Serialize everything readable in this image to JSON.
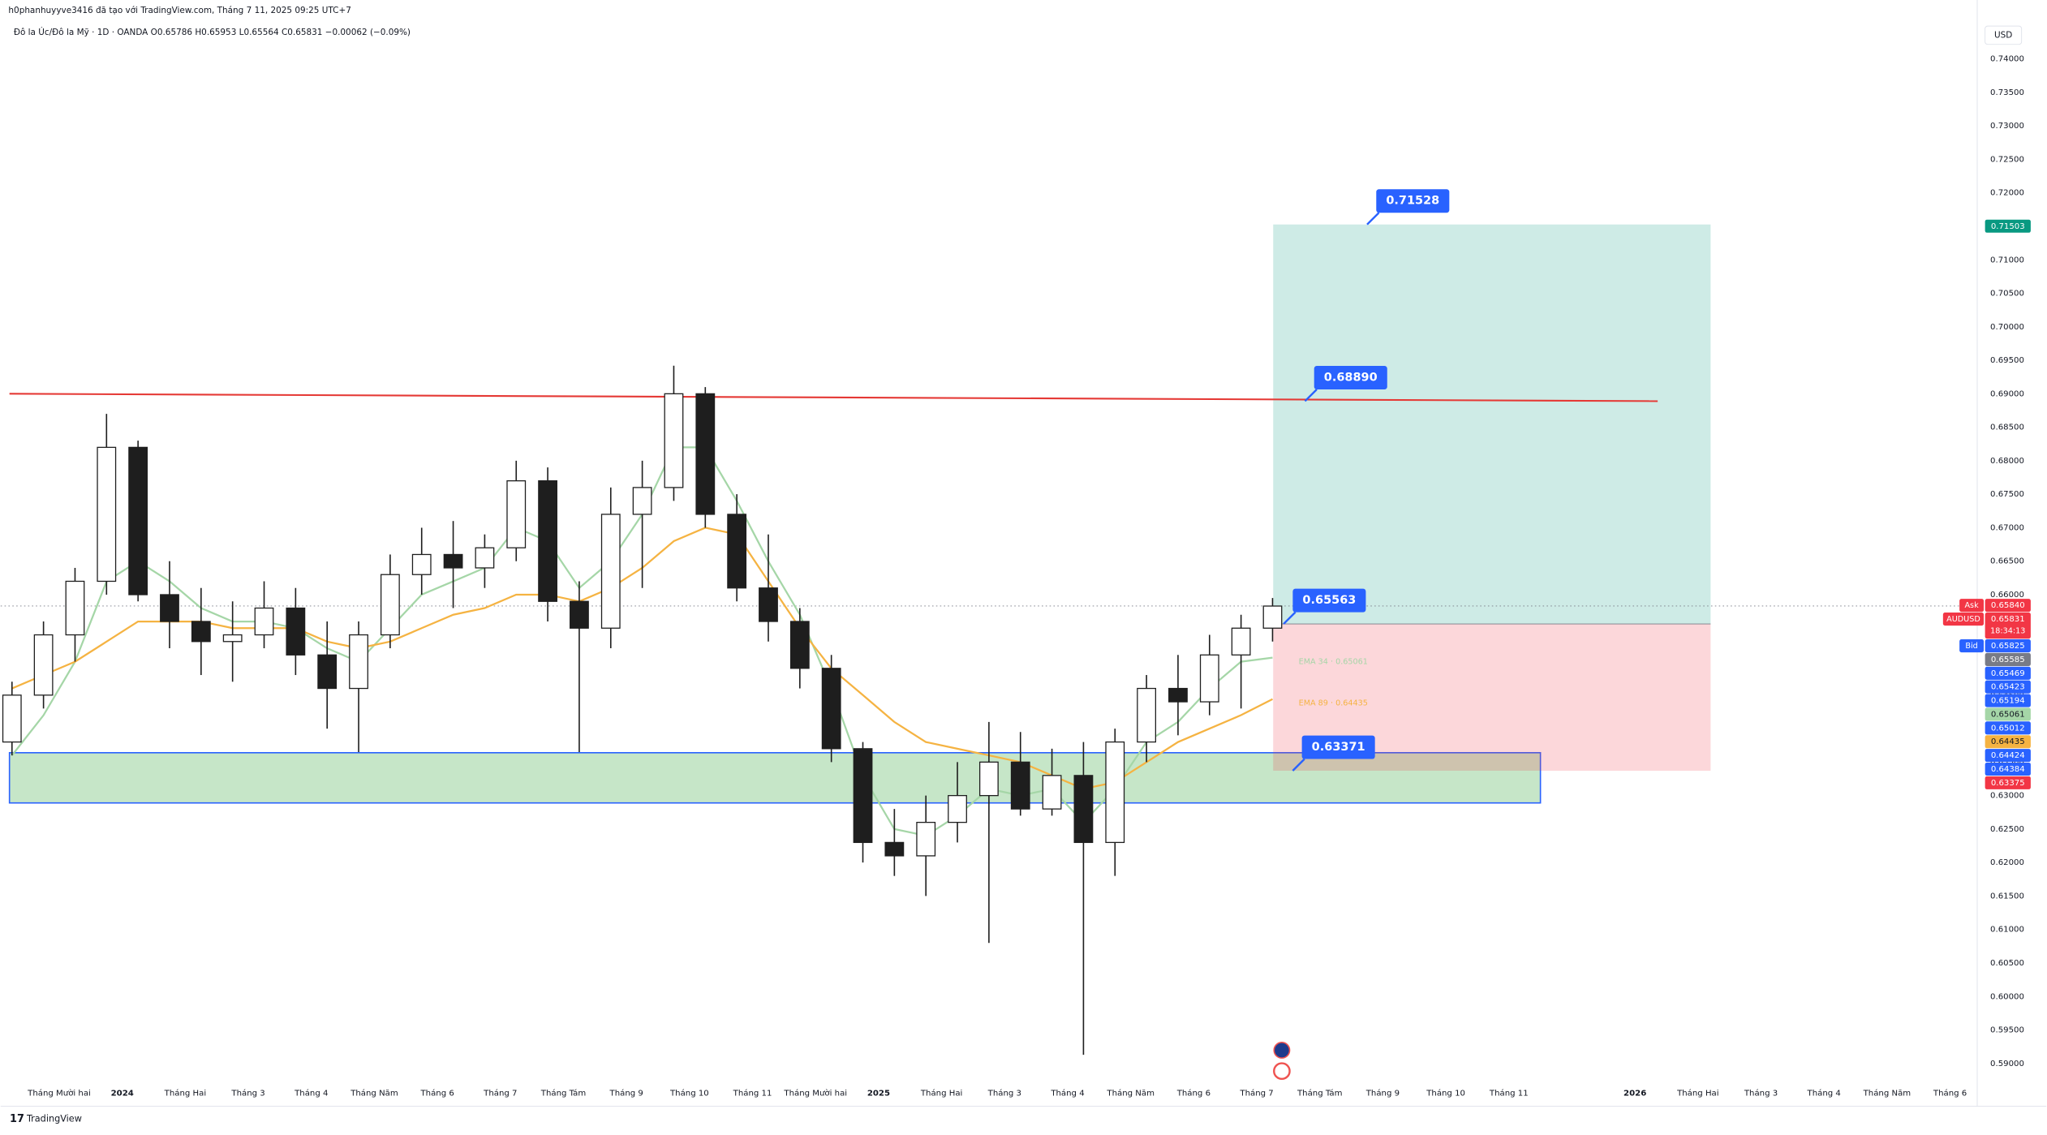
{
  "header": {
    "creator": "h0phanhuyyve3416 đã tạo với TradingView.com, Tháng 7 11, 2025 09:25 UTC+7",
    "symbol_line": "Đô la Úc/Đô la Mỹ · 1D · OANDA  O0.65786  H0.65953  L0.65564  C0.65831  −0.00062 (−0.09%)"
  },
  "chart_data": {
    "type": "candlestick",
    "currency": "USD",
    "up_color": "#ffffff",
    "down_color": "#1e1e1e",
    "wick_color": "#1e1e1e",
    "x": [
      -0.75,
      -0.25,
      0.25,
      0.75,
      1.25,
      1.75,
      2.25,
      2.75,
      3.25,
      3.75,
      4.25,
      4.75,
      5.25,
      5.75,
      6.25,
      6.75,
      7.25,
      7.75,
      8.25,
      8.75,
      9.25,
      9.75,
      10.25,
      10.75,
      11.25,
      11.75,
      12.25,
      12.75,
      13.25,
      13.75,
      14.25,
      14.75,
      15.25,
      15.75,
      16.25,
      16.75,
      17.25,
      17.75,
      18.25,
      18.75,
      19.25
    ],
    "open": [
      0.638,
      0.645,
      0.654,
      0.662,
      0.682,
      0.66,
      0.656,
      0.653,
      0.654,
      0.658,
      0.651,
      0.646,
      0.654,
      0.663,
      0.666,
      0.664,
      0.667,
      0.677,
      0.659,
      0.655,
      0.672,
      0.676,
      0.69,
      0.672,
      0.661,
      0.656,
      0.649,
      0.637,
      0.623,
      0.621,
      0.626,
      0.63,
      0.635,
      0.628,
      0.633,
      0.623,
      0.638,
      0.646,
      0.644,
      0.651,
      0.655
    ],
    "high": [
      0.647,
      0.656,
      0.664,
      0.687,
      0.683,
      0.665,
      0.661,
      0.659,
      0.662,
      0.661,
      0.656,
      0.656,
      0.666,
      0.67,
      0.671,
      0.669,
      0.68,
      0.679,
      0.662,
      0.676,
      0.68,
      0.6942,
      0.691,
      0.675,
      0.669,
      0.658,
      0.651,
      0.638,
      0.628,
      0.63,
      0.635,
      0.641,
      0.6395,
      0.637,
      0.638,
      0.64,
      0.648,
      0.651,
      0.654,
      0.657,
      0.6595
    ],
    "low": [
      0.636,
      0.643,
      0.65,
      0.66,
      0.659,
      0.652,
      0.648,
      0.647,
      0.652,
      0.648,
      0.64,
      0.6365,
      0.652,
      0.66,
      0.658,
      0.661,
      0.665,
      0.656,
      0.6365,
      0.652,
      0.661,
      0.674,
      0.67,
      0.659,
      0.653,
      0.646,
      0.635,
      0.62,
      0.618,
      0.615,
      0.623,
      0.608,
      0.627,
      0.627,
      0.5913,
      0.618,
      0.635,
      0.639,
      0.642,
      0.643,
      0.653
    ],
    "close": [
      0.645,
      0.654,
      0.662,
      0.682,
      0.66,
      0.656,
      0.653,
      0.654,
      0.658,
      0.651,
      0.646,
      0.654,
      0.663,
      0.666,
      0.664,
      0.667,
      0.677,
      0.659,
      0.655,
      0.672,
      0.676,
      0.69,
      0.672,
      0.661,
      0.656,
      0.649,
      0.637,
      0.623,
      0.621,
      0.626,
      0.63,
      0.635,
      0.628,
      0.633,
      0.623,
      0.638,
      0.646,
      0.644,
      0.651,
      0.655,
      0.6583
    ],
    "series": [
      {
        "name": "EMA 34",
        "label": "EMA 34 · 0.65061",
        "color": "#a5d6a7",
        "values": [
          0.636,
          0.642,
          0.65,
          0.662,
          0.665,
          0.662,
          0.658,
          0.656,
          0.656,
          0.655,
          0.652,
          0.65,
          0.655,
          0.66,
          0.662,
          0.664,
          0.67,
          0.668,
          0.661,
          0.665,
          0.672,
          0.682,
          0.682,
          0.674,
          0.665,
          0.657,
          0.646,
          0.633,
          0.625,
          0.624,
          0.627,
          0.631,
          0.63,
          0.631,
          0.626,
          0.631,
          0.638,
          0.641,
          0.646,
          0.65,
          0.6506
        ]
      },
      {
        "name": "EMA 89",
        "label": "EMA 89 · 0.64435",
        "color": "#f5b342",
        "values": [
          0.646,
          0.648,
          0.65,
          0.653,
          0.656,
          0.656,
          0.656,
          0.655,
          0.655,
          0.655,
          0.653,
          0.652,
          0.653,
          0.655,
          0.657,
          0.658,
          0.66,
          0.66,
          0.659,
          0.661,
          0.664,
          0.668,
          0.67,
          0.669,
          0.662,
          0.655,
          0.649,
          0.645,
          0.641,
          0.638,
          0.637,
          0.636,
          0.635,
          0.633,
          0.631,
          0.632,
          0.635,
          0.638,
          0.64,
          0.642,
          0.6444
        ]
      }
    ],
    "xlim": [
      -0.93,
      30.43
    ],
    "ylim": [
      0.5836,
      0.7488
    ],
    "xticks": [
      {
        "value": 0,
        "label": "Tháng Mười hai"
      },
      {
        "value": 1,
        "label": "2024"
      },
      {
        "value": 2,
        "label": "Tháng Hai"
      },
      {
        "value": 3,
        "label": "Tháng 3"
      },
      {
        "value": 4,
        "label": "Tháng 4"
      },
      {
        "value": 5,
        "label": "Tháng Năm"
      },
      {
        "value": 6,
        "label": "Tháng 6"
      },
      {
        "value": 7,
        "label": "Tháng 7"
      },
      {
        "value": 8,
        "label": "Tháng Tám"
      },
      {
        "value": 9,
        "label": "Tháng 9"
      },
      {
        "value": 10,
        "label": "Tháng 10"
      },
      {
        "value": 11,
        "label": "Tháng 11"
      },
      {
        "value": 12,
        "label": "Tháng Mười hai"
      },
      {
        "value": 13,
        "label": "2025"
      },
      {
        "value": 14,
        "label": "Tháng Hai"
      },
      {
        "value": 15,
        "label": "Tháng 3"
      },
      {
        "value": 16,
        "label": "Tháng 4"
      },
      {
        "value": 17,
        "label": "Tháng Năm"
      },
      {
        "value": 18,
        "label": "Tháng 6"
      },
      {
        "value": 19,
        "label": "Tháng 7"
      },
      {
        "value": 20,
        "label": "Tháng Tám"
      },
      {
        "value": 21,
        "label": "Tháng 9"
      },
      {
        "value": 22,
        "label": "Tháng 10"
      },
      {
        "value": 23,
        "label": "Tháng 11"
      },
      {
        "value": 25,
        "label": "2026"
      },
      {
        "value": 26,
        "label": "Tháng Hai"
      },
      {
        "value": 27,
        "label": "Tháng 3"
      },
      {
        "value": 28,
        "label": "Tháng 4"
      },
      {
        "value": 29,
        "label": "Tháng Năm"
      },
      {
        "value": 30,
        "label": "Tháng 6"
      }
    ],
    "yticks": [
      {
        "value": 0.74,
        "label": "0.74000"
      },
      {
        "value": 0.735,
        "label": "0.73500"
      },
      {
        "value": 0.73,
        "label": "0.73000"
      },
      {
        "value": 0.725,
        "label": "0.72500"
      },
      {
        "value": 0.72,
        "label": "0.72000"
      },
      {
        "value": 0.715,
        "label": "0.71500"
      },
      {
        "value": 0.71,
        "label": "0.71000"
      },
      {
        "value": 0.705,
        "label": "0.70500"
      },
      {
        "value": 0.7,
        "label": "0.70000"
      },
      {
        "value": 0.695,
        "label": "0.69500"
      },
      {
        "value": 0.69,
        "label": "0.69000"
      },
      {
        "value": 0.685,
        "label": "0.68500"
      },
      {
        "value": 0.68,
        "label": "0.68000"
      },
      {
        "value": 0.675,
        "label": "0.67500"
      },
      {
        "value": 0.67,
        "label": "0.67000"
      },
      {
        "value": 0.665,
        "label": "0.66500"
      },
      {
        "value": 0.66,
        "label": "0.66000"
      },
      {
        "value": 0.655,
        "label": "0.65500"
      },
      {
        "value": 0.65,
        "label": "0.65000"
      },
      {
        "value": 0.645,
        "label": "0.64500"
      },
      {
        "value": 0.64,
        "label": "0.64000"
      },
      {
        "value": 0.635,
        "label": "0.63500"
      },
      {
        "value": 0.63,
        "label": "0.63000"
      },
      {
        "value": 0.625,
        "label": "0.62500"
      },
      {
        "value": 0.62,
        "label": "0.62000"
      },
      {
        "value": 0.615,
        "label": "0.61500"
      },
      {
        "value": 0.61,
        "label": "0.61000"
      },
      {
        "value": 0.605,
        "label": "0.60500"
      },
      {
        "value": 0.6,
        "label": "0.60000"
      },
      {
        "value": 0.595,
        "label": "0.59500"
      },
      {
        "value": 0.59,
        "label": "0.59000"
      }
    ],
    "last": 0.65831,
    "level": {
      "x": [
        -0.79,
        25.36
      ],
      "y": [
        0.69,
        0.6889
      ],
      "color": "#e53935",
      "label": {
        "value": 0.6889,
        "label": "0.68890"
      }
    },
    "zone": {
      "x": [
        -0.79,
        23.5
      ],
      "y": [
        0.6289,
        0.6364
      ],
      "color": "#2962ff"
    },
    "position": {
      "x": [
        19.26,
        26.2
      ],
      "target": 0.71528,
      "entry": 0.65563,
      "stop": 0.63371
    },
    "price_tags": [
      {
        "value": 0.71503,
        "label": "0.71503",
        "color": "#089981"
      },
      {
        "value": 0.6584,
        "label": "0.65840",
        "color": "#f23645",
        "side": "Ask"
      },
      {
        "value": 0.65831,
        "label": "0.65831",
        "color": "#f23645",
        "side": "AUDUSD",
        "sub": "18:34:13"
      },
      {
        "value": 0.65825,
        "label": "0.65825",
        "color": "#2962ff",
        "side": "Bid"
      },
      {
        "value": 0.65585,
        "label": "0.65585",
        "color": "#787b86"
      },
      {
        "value": 0.65469,
        "label": "0.65469",
        "color": "#2962ff"
      },
      {
        "value": 0.65423,
        "label": "0.65423",
        "color": "#2962ff"
      },
      {
        "value": 0.65194,
        "label": "0.65194",
        "color": "#2962ff"
      },
      {
        "value": 0.65061,
        "label": "0.65061",
        "color": "#a5d6a7"
      },
      {
        "value": 0.65012,
        "label": "0.65012",
        "color": "#2962ff"
      },
      {
        "value": 0.64435,
        "label": "0.64435",
        "color": "#f5b342"
      },
      {
        "value": 0.64424,
        "label": "0.64424",
        "color": "#2962ff"
      },
      {
        "value": 0.64384,
        "label": "0.64384",
        "color": "#2962ff"
      },
      {
        "value": 0.63375,
        "label": "0.63375",
        "color": "#f23645"
      }
    ]
  },
  "footer": {
    "brand": "TradingView"
  }
}
